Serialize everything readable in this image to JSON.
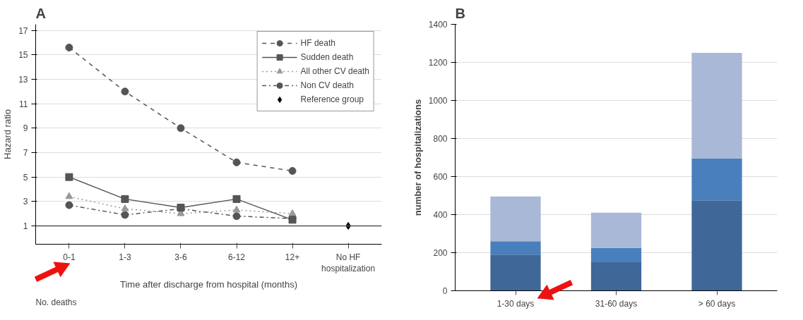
{
  "chart_data": [
    {
      "type": "line",
      "title": "A",
      "xlabel": "Time after discharge from hospital (months)",
      "ylabel": "Hazard ratio",
      "categories": [
        "0-1",
        "1-3",
        "3-6",
        "6-12",
        "12+",
        "No HF hospitalization"
      ],
      "series": [
        {
          "name": "HF death",
          "color": "#555555",
          "line_style": "dashed",
          "marker": "circle",
          "values": [
            15.6,
            12.0,
            9.0,
            6.2,
            5.5,
            null
          ]
        },
        {
          "name": "Sudden death",
          "color": "#555555",
          "line_style": "solid",
          "marker": "square",
          "values": [
            5.0,
            3.2,
            2.5,
            3.2,
            1.5,
            null
          ]
        },
        {
          "name": "All other CV death",
          "color": "#999999",
          "line_style": "dotted",
          "marker": "triangle",
          "values": [
            3.4,
            2.4,
            2.0,
            2.3,
            2.0,
            null
          ]
        },
        {
          "name": "Non CV death",
          "color": "#555555",
          "line_style": "dashdot",
          "marker": "circle",
          "values": [
            2.7,
            1.9,
            2.4,
            1.8,
            1.6,
            null
          ]
        },
        {
          "name": "Reference group",
          "type": "scatter",
          "color": "#000000",
          "marker": "diamond",
          "values": [
            null,
            null,
            null,
            null,
            null,
            1
          ]
        }
      ],
      "ylim": [
        -0.5,
        17.5
      ],
      "yticks": [
        1,
        3,
        5,
        7,
        9,
        11,
        13,
        15,
        17
      ],
      "grid": "y",
      "legend": "top right",
      "ref_lines": [
        {
          "axis": "y",
          "value": 1,
          "color": "#555555"
        }
      ],
      "annotations": [
        "No. deaths"
      ]
    },
    {
      "type": "bar",
      "title": "B",
      "ylabel": "number of hospitalizations",
      "stacked": true,
      "categories": [
        "1-30 days",
        "31-60 days",
        "> 60 days"
      ],
      "series": [
        {
          "color": "#3f6899",
          "values": [
            190,
            150,
            475
          ]
        },
        {
          "color": "#4a7fbd",
          "values": [
            70,
            75,
            220
          ]
        },
        {
          "color": "#a9b8d6",
          "values": [
            235,
            185,
            555
          ]
        }
      ],
      "ylim": [
        0,
        1400
      ],
      "yticks": [
        0,
        200,
        400,
        600,
        800,
        1000,
        1200,
        1400
      ],
      "grid": "y",
      "legend": false
    }
  ]
}
